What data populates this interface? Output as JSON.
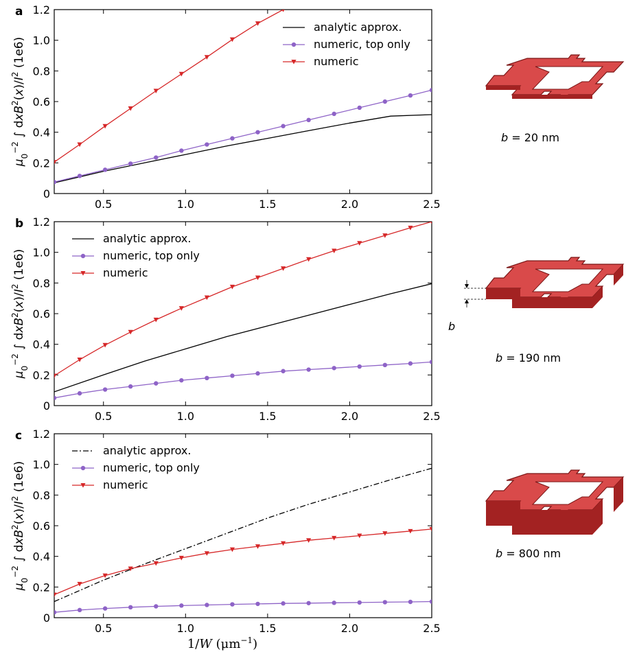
{
  "chart_data": [
    {
      "panel": "a",
      "type": "line",
      "ylabel": "μ0−2 ∫dxB2(x)/I2 (1e6)",
      "xlim": [
        0.2,
        2.5
      ],
      "ylim": [
        0,
        1.2
      ],
      "xticks": [
        "0.5",
        "1.0",
        "1.5",
        "2.0",
        "2.5"
      ],
      "yticks": [
        "0",
        "0.2",
        "0.4",
        "0.6",
        "0.8",
        "1.0",
        "1.2"
      ],
      "legend_position": "top-right",
      "series": [
        {
          "name": "analytic approx.",
          "style": "solid",
          "marker": "none",
          "color": "#000000",
          "x": [
            0.2,
            0.5,
            0.75,
            1.0,
            1.25,
            1.5,
            1.75,
            2.0,
            2.25,
            2.5
          ],
          "y": [
            0.07,
            0.145,
            0.2,
            0.255,
            0.31,
            0.36,
            0.41,
            0.46,
            0.505,
            0.515
          ]
        },
        {
          "name": "numeric, top only",
          "style": "solid",
          "marker": "circle",
          "color": "#8e63c7",
          "x": [
            0.2,
            0.355,
            0.51,
            0.665,
            0.82,
            0.975,
            1.13,
            1.285,
            1.44,
            1.595,
            1.75,
            1.905,
            2.06,
            2.215,
            2.37,
            2.5
          ],
          "y": [
            0.075,
            0.115,
            0.155,
            0.195,
            0.235,
            0.28,
            0.32,
            0.36,
            0.4,
            0.44,
            0.48,
            0.52,
            0.56,
            0.6,
            0.64,
            0.675
          ]
        },
        {
          "name": "numeric",
          "style": "solid",
          "marker": "triangle-down",
          "color": "#d62728",
          "x": [
            0.2,
            0.355,
            0.51,
            0.665,
            0.82,
            0.975,
            1.13,
            1.285,
            1.44,
            1.595
          ],
          "y": [
            0.205,
            0.32,
            0.44,
            0.555,
            0.67,
            0.78,
            0.89,
            1.005,
            1.11,
            1.2
          ]
        }
      ]
    },
    {
      "panel": "b",
      "type": "line",
      "ylabel": "μ0−2 ∫dxB2(x)/I2 (1e6)",
      "xlim": [
        0.2,
        2.5
      ],
      "ylim": [
        0,
        1.2
      ],
      "xticks": [
        "0.5",
        "1.0",
        "1.5",
        "2.0",
        "2.5"
      ],
      "yticks": [
        "0",
        "0.2",
        "0.4",
        "0.6",
        "0.8",
        "1.0",
        "1.2"
      ],
      "legend_position": "top-left",
      "series": [
        {
          "name": "analytic approx.",
          "style": "solid",
          "marker": "none",
          "color": "#000000",
          "x": [
            0.2,
            0.5,
            0.75,
            1.0,
            1.25,
            1.5,
            1.75,
            2.0,
            2.25,
            2.5
          ],
          "y": [
            0.09,
            0.2,
            0.29,
            0.37,
            0.45,
            0.52,
            0.59,
            0.66,
            0.73,
            0.795
          ]
        },
        {
          "name": "numeric, top only",
          "style": "solid",
          "marker": "circle",
          "color": "#8e63c7",
          "x": [
            0.2,
            0.355,
            0.51,
            0.665,
            0.82,
            0.975,
            1.13,
            1.285,
            1.44,
            1.595,
            1.75,
            1.905,
            2.06,
            2.215,
            2.37,
            2.5
          ],
          "y": [
            0.05,
            0.08,
            0.105,
            0.125,
            0.145,
            0.165,
            0.18,
            0.195,
            0.21,
            0.225,
            0.235,
            0.245,
            0.255,
            0.265,
            0.275,
            0.285
          ]
        },
        {
          "name": "numeric",
          "style": "solid",
          "marker": "triangle-down",
          "color": "#d62728",
          "x": [
            0.2,
            0.355,
            0.51,
            0.665,
            0.82,
            0.975,
            1.13,
            1.285,
            1.44,
            1.595,
            1.75,
            1.905,
            2.06,
            2.215,
            2.37,
            2.5
          ],
          "y": [
            0.195,
            0.3,
            0.395,
            0.48,
            0.56,
            0.635,
            0.705,
            0.775,
            0.835,
            0.895,
            0.955,
            1.01,
            1.06,
            1.11,
            1.16,
            1.2
          ]
        }
      ]
    },
    {
      "panel": "c",
      "type": "line",
      "ylabel": "μ0−2 ∫dxB2(x)/I2 (1e6)",
      "xlabel": "1/W (μm−1)",
      "xlim": [
        0.2,
        2.5
      ],
      "ylim": [
        0,
        1.2
      ],
      "xticks": [
        "0.5",
        "1.0",
        "1.5",
        "2.0",
        "2.5"
      ],
      "yticks": [
        "0",
        "0.2",
        "0.4",
        "0.6",
        "0.8",
        "1.0",
        "1.2"
      ],
      "legend_position": "top-left",
      "series": [
        {
          "name": "analytic approx.",
          "style": "dashdot",
          "marker": "none",
          "color": "#000000",
          "x": [
            0.2,
            0.5,
            0.75,
            1.0,
            1.25,
            1.5,
            1.75,
            2.0,
            2.25,
            2.5
          ],
          "y": [
            0.105,
            0.245,
            0.35,
            0.45,
            0.55,
            0.65,
            0.74,
            0.82,
            0.9,
            0.975
          ]
        },
        {
          "name": "numeric, top only",
          "style": "solid",
          "marker": "circle",
          "color": "#8e63c7",
          "x": [
            0.2,
            0.355,
            0.51,
            0.665,
            0.82,
            0.975,
            1.13,
            1.285,
            1.44,
            1.595,
            1.75,
            1.905,
            2.06,
            2.215,
            2.37,
            2.5
          ],
          "y": [
            0.035,
            0.05,
            0.06,
            0.068,
            0.074,
            0.079,
            0.083,
            0.087,
            0.09,
            0.093,
            0.095,
            0.097,
            0.099,
            0.101,
            0.103,
            0.105
          ]
        },
        {
          "name": "numeric",
          "style": "solid",
          "marker": "triangle-down",
          "color": "#d62728",
          "x": [
            0.2,
            0.355,
            0.51,
            0.665,
            0.82,
            0.975,
            1.13,
            1.285,
            1.44,
            1.595,
            1.75,
            1.905,
            2.06,
            2.215,
            2.37,
            2.5
          ],
          "y": [
            0.15,
            0.22,
            0.275,
            0.32,
            0.355,
            0.39,
            0.42,
            0.445,
            0.465,
            0.485,
            0.505,
            0.52,
            0.535,
            0.55,
            0.565,
            0.578
          ]
        }
      ]
    }
  ],
  "captions": {
    "a": "= 20 nm",
    "b": "= 190 nm",
    "c": "= 800 nm",
    "b_var": "b",
    "b_marker": "b"
  },
  "colors": {
    "analytic": "#000000",
    "top_only": "#8e63c7",
    "numeric": "#d62728",
    "structure_fill": "#d94a4a",
    "structure_dark": "#a32222",
    "structure_light": "#ef8a8a"
  }
}
